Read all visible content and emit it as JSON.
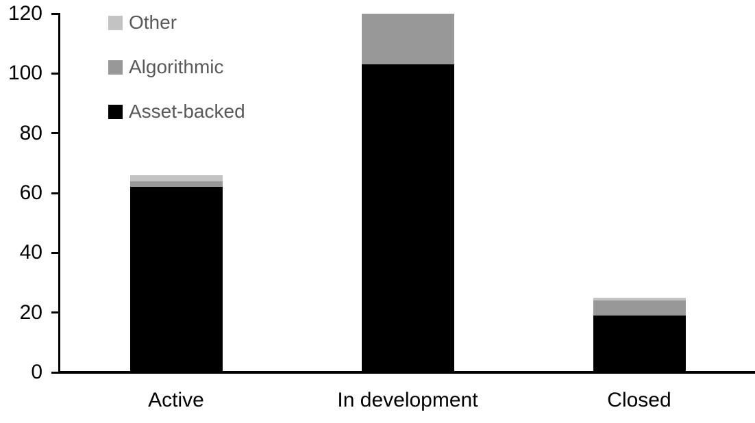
{
  "chart_data": {
    "type": "bar",
    "stacked": true,
    "title": "",
    "categories": [
      "Active",
      "In development",
      "Closed"
    ],
    "series": [
      {
        "name": "Asset-backed",
        "color": "#000000",
        "values": [
          62,
          103,
          19
        ]
      },
      {
        "name": "Algorithmic",
        "color": "#989898",
        "values": [
          2,
          17,
          5
        ]
      },
      {
        "name": "Other",
        "color": "#c3c3c3",
        "values": [
          2,
          0,
          1
        ]
      }
    ],
    "totals": [
      66,
      120,
      25
    ],
    "ylim": [
      0,
      120
    ],
    "yticks": [
      0,
      20,
      40,
      60,
      80,
      100,
      120
    ],
    "xlabel": "",
    "ylabel": "",
    "grid": false,
    "legend_position": "top-left",
    "legend_order": [
      "Other",
      "Algorithmic",
      "Asset-backed"
    ]
  },
  "colors": {
    "background": "#ffffff",
    "axis": "#000000",
    "tick_label_text": "#000000",
    "category_label_text": "#000000",
    "legend_text": "#595959"
  }
}
